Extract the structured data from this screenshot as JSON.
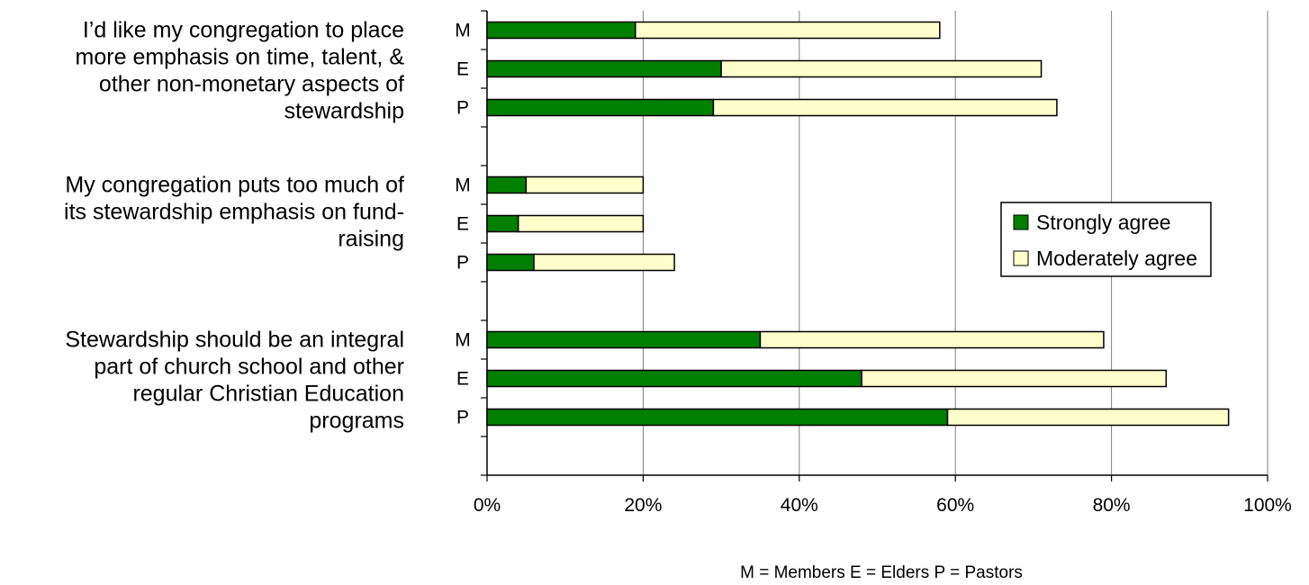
{
  "chart_data": {
    "type": "bar",
    "orientation": "horizontal",
    "stacked": true,
    "title": "",
    "xlabel": "",
    "ylabel": "",
    "xlim": [
      0,
      100
    ],
    "x_ticks": [
      "0%",
      "20%",
      "40%",
      "60%",
      "80%",
      "100%"
    ],
    "grid": true,
    "legend_position": "right",
    "groups": [
      {
        "question": "I’d like my congregation to place more emphasis on time, talent, & other non-monetary aspects of stewardship",
        "question_lines": [
          "I’d like my congregation to place",
          "more emphasis on time, talent, &",
          "other non-monetary aspects of",
          "stewardship"
        ],
        "categories": [
          "M",
          "E",
          "P"
        ],
        "strongly": [
          19,
          30,
          29
        ],
        "moderately": [
          39,
          41,
          44
        ]
      },
      {
        "question": "My congregation puts too much of its stewardship emphasis on fund-raising",
        "question_lines": [
          "My congregation puts too much of",
          "its stewardship emphasis on fund-",
          "raising"
        ],
        "categories": [
          "M",
          "E",
          "P"
        ],
        "strongly": [
          5,
          4,
          6
        ],
        "moderately": [
          15,
          16,
          18
        ]
      },
      {
        "question": "Stewardship should be an integral part of church school and other regular Christian Education programs",
        "question_lines": [
          "Stewardship should be an integral",
          "part of church school and other",
          "regular Christian Education",
          "programs"
        ],
        "categories": [
          "M",
          "E",
          "P"
        ],
        "strongly": [
          35,
          48,
          59
        ],
        "moderately": [
          44,
          39,
          36
        ]
      }
    ],
    "series": [
      {
        "name": "Strongly agree",
        "color": "#007f00"
      },
      {
        "name": "Moderately agree",
        "color": "#ffffcc"
      }
    ],
    "footnote": "M = Members   E = Elders  P = Pastors"
  }
}
